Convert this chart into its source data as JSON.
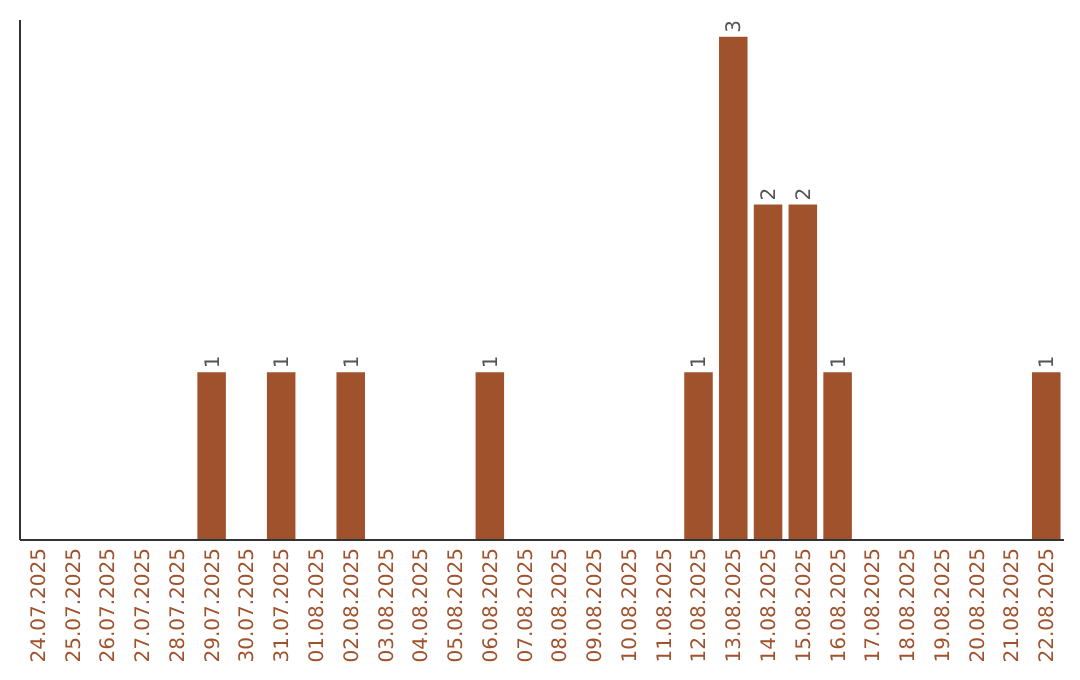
{
  "chart_data": {
    "type": "bar",
    "categories": [
      "24.07.2025",
      "25.07.2025",
      "26.07.2025",
      "27.07.2025",
      "28.07.2025",
      "29.07.2025",
      "30.07.2025",
      "31.07.2025",
      "01.08.2025",
      "02.08.2025",
      "03.08.2025",
      "04.08.2025",
      "05.08.2025",
      "06.08.2025",
      "07.08.2025",
      "08.08.2025",
      "09.08.2025",
      "10.08.2025",
      "11.08.2025",
      "12.08.2025",
      "13.08.2025",
      "14.08.2025",
      "15.08.2025",
      "16.08.2025",
      "17.08.2025",
      "18.08.2025",
      "19.08.2025",
      "20.08.2025",
      "21.08.2025",
      "22.08.2025"
    ],
    "values": [
      0,
      0,
      0,
      0,
      0,
      1,
      0,
      1,
      0,
      1,
      0,
      0,
      0,
      1,
      0,
      0,
      0,
      0,
      0,
      1,
      3,
      2,
      2,
      1,
      0,
      0,
      0,
      0,
      0,
      1
    ],
    "value_labels": [
      null,
      null,
      null,
      null,
      null,
      "1",
      null,
      "1",
      null,
      "1",
      null,
      null,
      null,
      "1",
      null,
      null,
      null,
      null,
      null,
      "1",
      "3",
      "2",
      "2",
      "1",
      null,
      null,
      null,
      null,
      null,
      "1"
    ],
    "color": "#a0522d",
    "ylim": [
      0,
      3.1
    ],
    "tick_labels": "x"
  }
}
